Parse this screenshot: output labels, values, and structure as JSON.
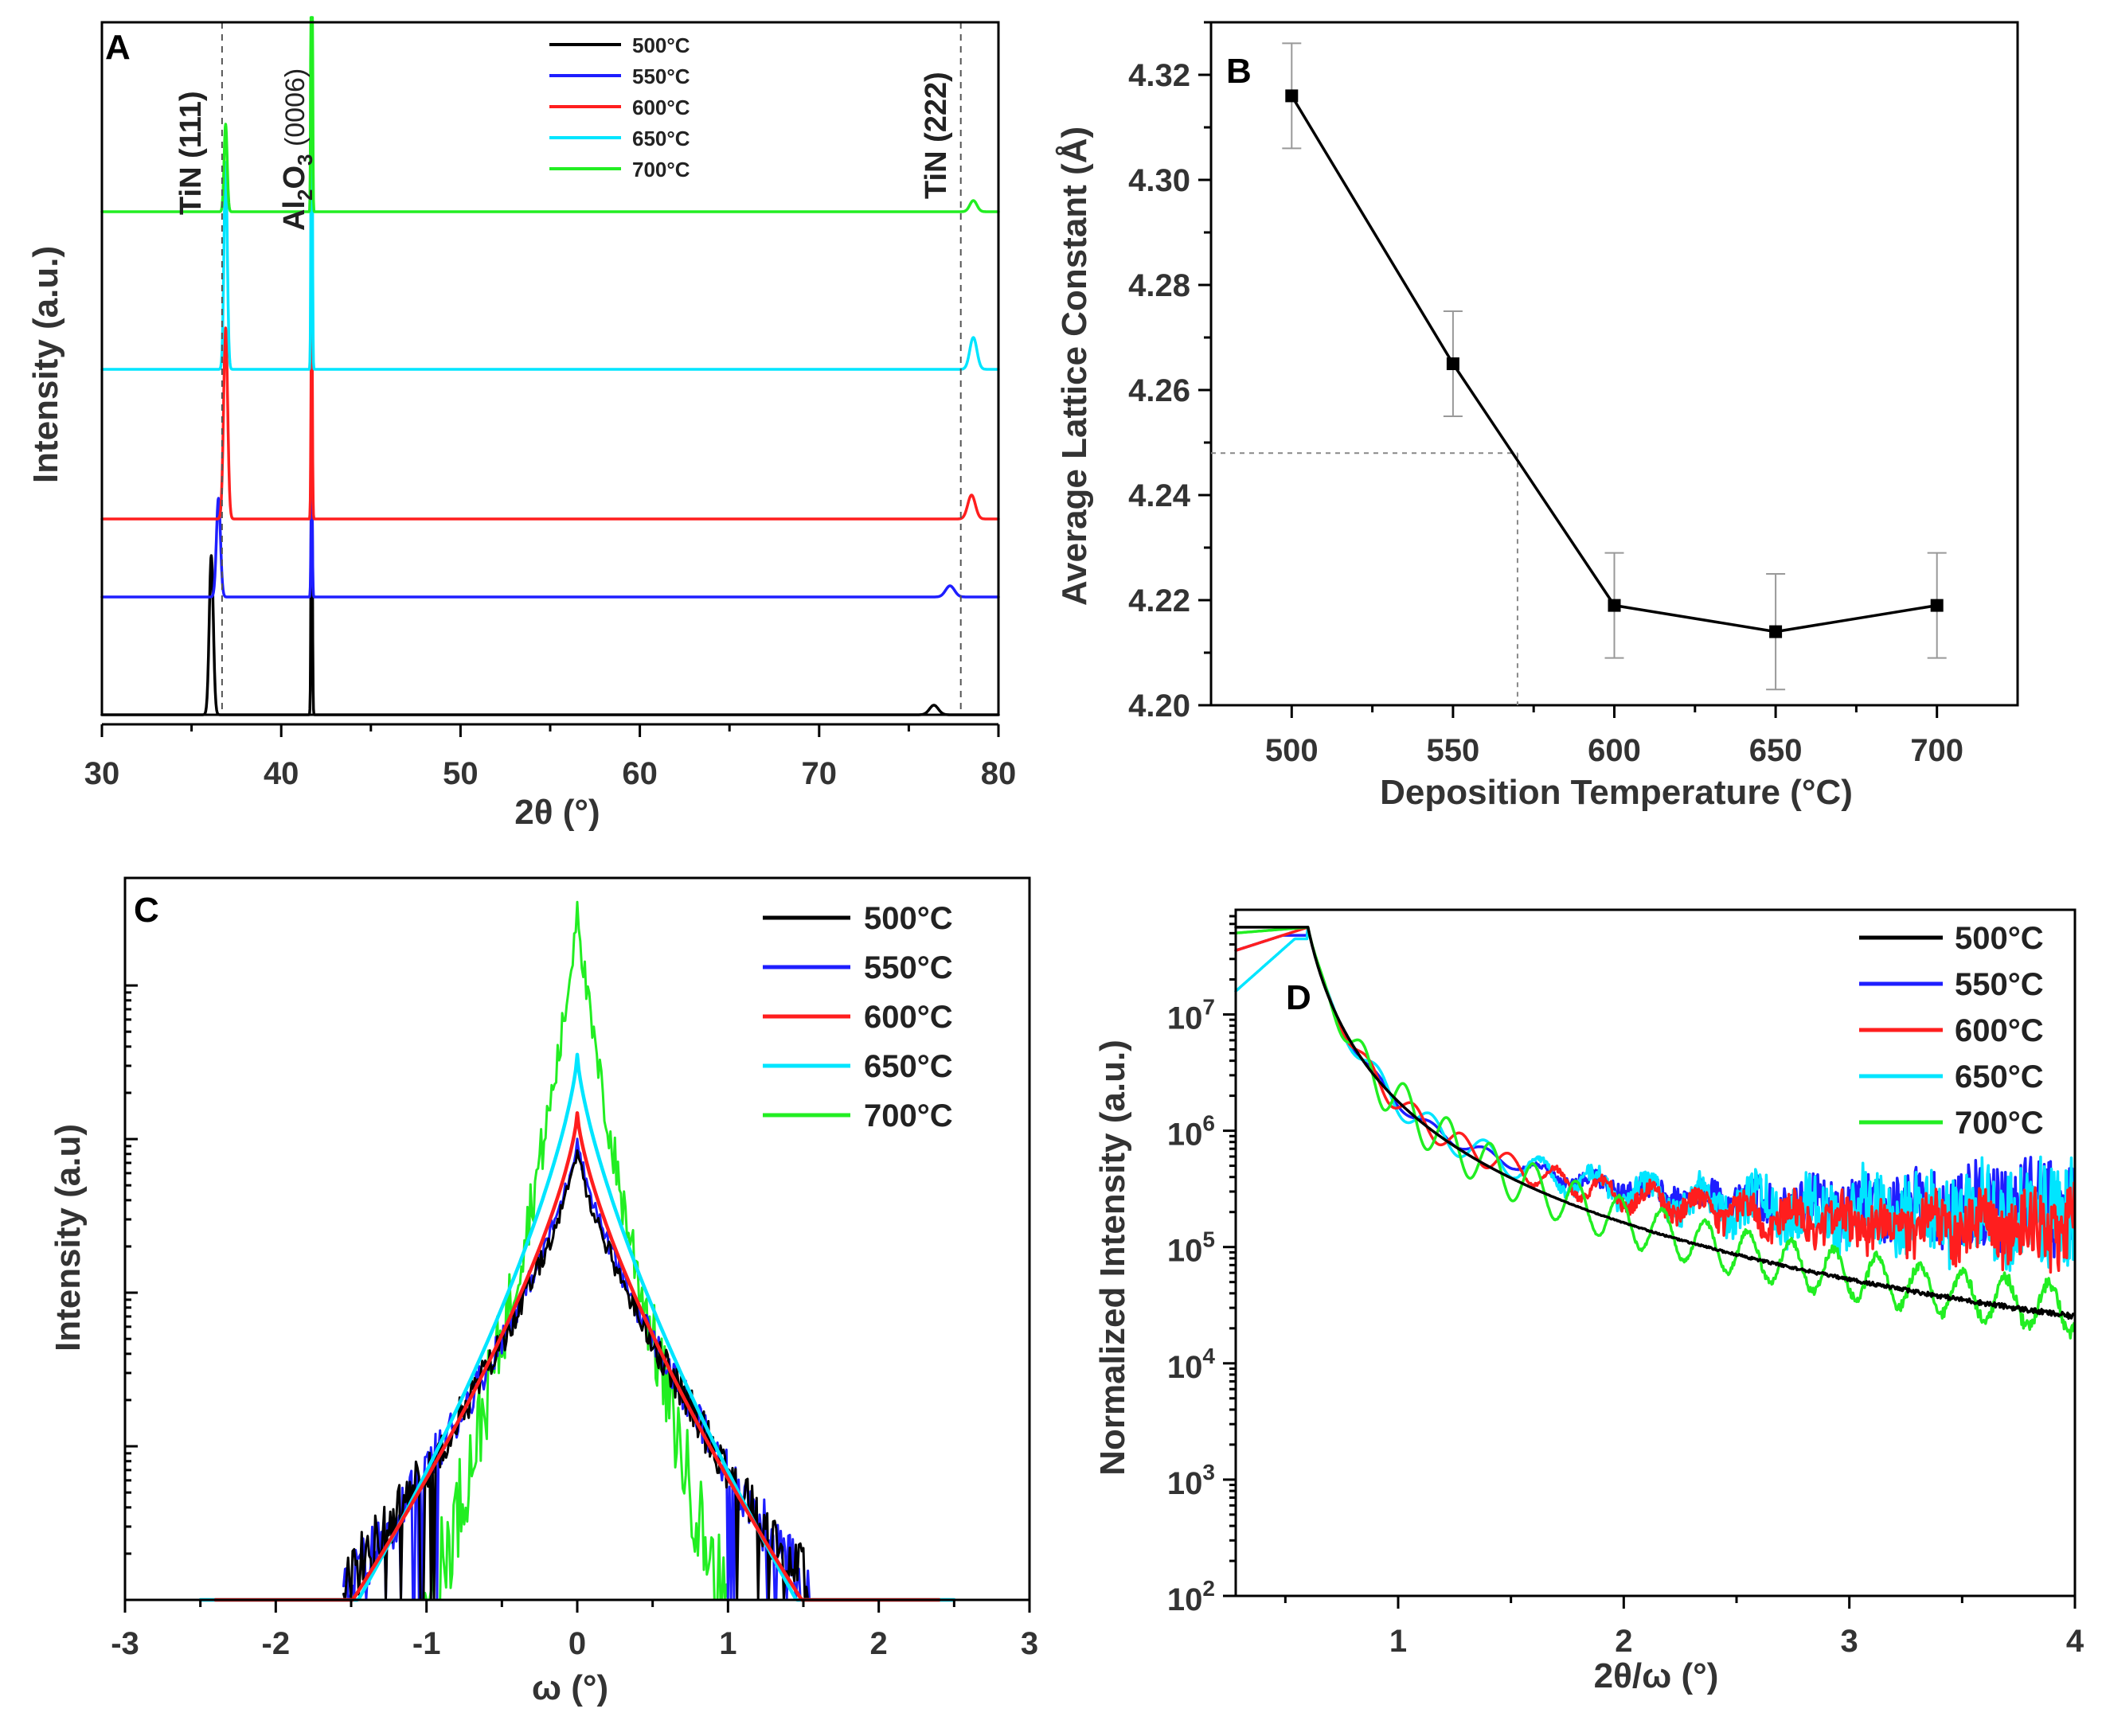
{
  "colors": {
    "500": "#000000",
    "550": "#1e1eff",
    "600": "#ff1e1e",
    "650": "#00e5ff",
    "700": "#22ee22",
    "guide": "#888888"
  },
  "chart_data": [
    {
      "panel": "A",
      "type": "line",
      "title": "",
      "xlabel": "2θ (°)",
      "ylabel": "Intensity (a.u.)",
      "xlim": [
        30,
        80
      ],
      "xticks": [
        "30",
        "40",
        "50",
        "60",
        "70",
        "80"
      ],
      "legend": [
        "500°C",
        "550°C",
        "600°C",
        "650°C",
        "700°C"
      ],
      "legend_position": "top-center",
      "annotations": [
        "TiN (111)",
        "Al2O3 (0006)",
        "TiN (222)"
      ],
      "annotation_main": "Al",
      "annotation_sub1": "2",
      "annotation_mid": "O",
      "annotation_sub2": "3",
      "annotation_tail": " (0006)",
      "reference_lines_2theta": [
        36.7,
        77.9
      ],
      "series": [
        {
          "name": "500°C",
          "offset": 0,
          "peaks": [
            {
              "x": 36.1,
              "h": 1.0,
              "w": 0.16
            },
            {
              "x": 41.7,
              "h": 2.0,
              "w": 0.05
            },
            {
              "x": 76.4,
              "h": 0.06,
              "w": 0.35
            }
          ]
        },
        {
          "name": "550°C",
          "offset": 1,
          "peaks": [
            {
              "x": 36.5,
              "h": 0.62,
              "w": 0.16
            },
            {
              "x": 41.7,
              "h": 0.8,
              "w": 0.05
            },
            {
              "x": 77.3,
              "h": 0.07,
              "w": 0.35
            }
          ]
        },
        {
          "name": "600°C",
          "offset": 2,
          "peaks": [
            {
              "x": 36.9,
              "h": 1.2,
              "w": 0.16
            },
            {
              "x": 41.7,
              "h": 1.5,
              "w": 0.05
            },
            {
              "x": 78.5,
              "h": 0.15,
              "w": 0.3
            }
          ]
        },
        {
          "name": "650°C",
          "offset": 3,
          "peaks": [
            {
              "x": 36.9,
              "h": 1.3,
              "w": 0.13
            },
            {
              "x": 41.7,
              "h": 2.5,
              "w": 0.05
            },
            {
              "x": 78.6,
              "h": 0.2,
              "w": 0.28
            }
          ]
        },
        {
          "name": "700°C",
          "offset": 4,
          "peaks": [
            {
              "x": 36.9,
              "h": 0.55,
              "w": 0.12
            },
            {
              "x": 41.7,
              "h": 4.0,
              "w": 0.05
            },
            {
              "x": 78.6,
              "h": 0.07,
              "w": 0.28
            }
          ]
        }
      ]
    },
    {
      "panel": "B",
      "type": "line",
      "title": "",
      "xlabel": "Deposition Temperature (°C)",
      "ylabel": "Average Lattice Constant (Å)",
      "xlim": [
        475,
        725
      ],
      "ylim": [
        4.2,
        4.33
      ],
      "xticks": [
        "500",
        "550",
        "600",
        "650",
        "700"
      ],
      "yticks": [
        "4.20",
        "4.22",
        "4.24",
        "4.26",
        "4.28",
        "4.30",
        "4.32"
      ],
      "x": [
        500,
        550,
        600,
        650,
        700
      ],
      "y": [
        4.316,
        4.265,
        4.219,
        4.214,
        4.219
      ],
      "yerr": [
        0.01,
        0.01,
        0.01,
        0.011,
        0.01
      ],
      "guide_point": [
        570,
        4.248
      ]
    },
    {
      "panel": "C",
      "type": "line",
      "title": "",
      "xlabel": "ω (°)",
      "ylabel": "Intensity (a.u)",
      "xlim": [
        -3,
        3
      ],
      "xticks": [
        "-3",
        "-2",
        "-1",
        "0",
        "1",
        "2",
        "3"
      ],
      "legend": [
        "500°C",
        "550°C",
        "600°C",
        "650°C",
        "700°C"
      ],
      "legend_position": "top-right",
      "y_scale": "log",
      "peak_heights_log": {
        "500°C": 2.95,
        "550°C": 3.02,
        "600°C": 3.17,
        "650°C": 3.55,
        "700°C": 4.6
      }
    },
    {
      "panel": "D",
      "type": "line",
      "title": "",
      "xlabel": "2θ/ω (°)",
      "ylabel": "Normalized Intensity (a.u.)",
      "xlim": [
        0.28,
        4.0
      ],
      "ylim_log10": [
        2,
        7.9
      ],
      "xticks": [
        "1",
        "2",
        "3",
        "4"
      ],
      "yticks_base": "10",
      "yticks_exp": [
        "2",
        "3",
        "4",
        "5",
        "6",
        "7"
      ],
      "legend": [
        "500°C",
        "550°C",
        "600°C",
        "650°C",
        "700°C"
      ],
      "legend_position": "top-right",
      "y_scale": "log"
    }
  ],
  "panel_labels": [
    "A",
    "B",
    "C",
    "D"
  ]
}
